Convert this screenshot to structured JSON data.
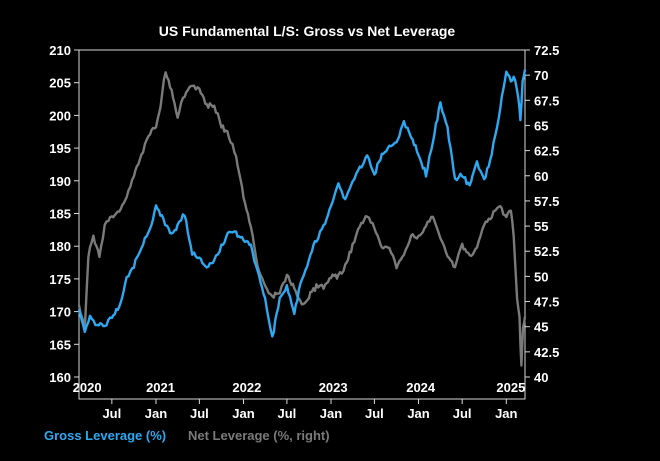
{
  "chart_data": {
    "type": "line",
    "title": "US Fundamental L/S: Gross vs Net Leverage",
    "x_range": [
      "2020-02-15",
      "2025-03-20"
    ],
    "year_labels": [
      {
        "label": "2020",
        "date": "2020-03-20"
      },
      {
        "label": "2021",
        "date": "2021-01-20"
      },
      {
        "label": "2022",
        "date": "2022-01-15"
      },
      {
        "label": "2023",
        "date": "2023-01-10"
      },
      {
        "label": "2024",
        "date": "2024-01-10"
      },
      {
        "label": "2025",
        "date": "2025-01-20"
      }
    ],
    "month_ticks": [
      {
        "label": "Jul",
        "date": "2020-07-01"
      },
      {
        "label": "Jan",
        "date": "2021-01-01"
      },
      {
        "label": "Jul",
        "date": "2021-07-01"
      },
      {
        "label": "Jan",
        "date": "2022-01-01"
      },
      {
        "label": "Jul",
        "date": "2022-07-01"
      },
      {
        "label": "Jan",
        "date": "2023-01-01"
      },
      {
        "label": "Jul",
        "date": "2023-07-01"
      },
      {
        "label": "Jan",
        "date": "2024-01-01"
      },
      {
        "label": "Jul",
        "date": "2024-07-01"
      },
      {
        "label": "Jan",
        "date": "2025-01-01"
      }
    ],
    "y_left": {
      "min": 160,
      "max": 210,
      "ticks": [
        "160",
        "165",
        "170",
        "175",
        "180",
        "185",
        "190",
        "195",
        "200",
        "205",
        "210"
      ]
    },
    "y_right": {
      "min": 40,
      "max": 72.5,
      "ticks": [
        "40",
        "42.5",
        "45",
        "47.5",
        "50",
        "52.5",
        "55",
        "57.5",
        "60",
        "62.5",
        "65",
        "67.5",
        "70",
        "72.5"
      ]
    },
    "series": [
      {
        "name": "Net Leverage (%, right)",
        "axis": "right",
        "color": "#7a7a7a",
        "points": [
          [
            "2020-02-15",
            47
          ],
          [
            "2020-03-10",
            45
          ],
          [
            "2020-03-25",
            52
          ],
          [
            "2020-04-15",
            54
          ],
          [
            "2020-05-10",
            52
          ],
          [
            "2020-06-01",
            55
          ],
          [
            "2020-07-01",
            56
          ],
          [
            "2020-08-01",
            56.5
          ],
          [
            "2020-09-01",
            58
          ],
          [
            "2020-10-01",
            60
          ],
          [
            "2020-11-01",
            62
          ],
          [
            "2020-12-01",
            64
          ],
          [
            "2021-01-01",
            65
          ],
          [
            "2021-01-20",
            67
          ],
          [
            "2021-02-10",
            70.5
          ],
          [
            "2021-03-01",
            69
          ],
          [
            "2021-04-01",
            66
          ],
          [
            "2021-05-01",
            68
          ],
          [
            "2021-06-01",
            69
          ],
          [
            "2021-07-01",
            68.5
          ],
          [
            "2021-08-01",
            67
          ],
          [
            "2021-09-01",
            67
          ],
          [
            "2021-10-01",
            65
          ],
          [
            "2021-11-01",
            64
          ],
          [
            "2021-12-01",
            62
          ],
          [
            "2022-01-01",
            58
          ],
          [
            "2022-02-01",
            55
          ],
          [
            "2022-03-01",
            51
          ],
          [
            "2022-04-01",
            49
          ],
          [
            "2022-05-01",
            48
          ],
          [
            "2022-06-01",
            48.5
          ],
          [
            "2022-07-01",
            50
          ],
          [
            "2022-08-01",
            49
          ],
          [
            "2022-09-01",
            47
          ],
          [
            "2022-10-01",
            48
          ],
          [
            "2022-11-01",
            49
          ],
          [
            "2022-12-01",
            49
          ],
          [
            "2023-01-01",
            50
          ],
          [
            "2023-02-01",
            50
          ],
          [
            "2023-03-01",
            51
          ],
          [
            "2023-04-01",
            53
          ],
          [
            "2023-05-01",
            55
          ],
          [
            "2023-06-01",
            56
          ],
          [
            "2023-07-01",
            55
          ],
          [
            "2023-08-01",
            53
          ],
          [
            "2023-09-01",
            53
          ],
          [
            "2023-10-01",
            51
          ],
          [
            "2023-11-01",
            52
          ],
          [
            "2023-12-01",
            54
          ],
          [
            "2024-01-01",
            54
          ],
          [
            "2024-02-01",
            55
          ],
          [
            "2024-03-01",
            56
          ],
          [
            "2024-04-01",
            54
          ],
          [
            "2024-05-01",
            52
          ],
          [
            "2024-06-01",
            51
          ],
          [
            "2024-07-01",
            53
          ],
          [
            "2024-08-01",
            52
          ],
          [
            "2024-09-01",
            53
          ],
          [
            "2024-10-01",
            55
          ],
          [
            "2024-11-01",
            56
          ],
          [
            "2024-12-01",
            57
          ],
          [
            "2025-01-01",
            56
          ],
          [
            "2025-01-20",
            56.5
          ],
          [
            "2025-02-01",
            54
          ],
          [
            "2025-02-15",
            48
          ],
          [
            "2025-02-25",
            46
          ],
          [
            "2025-03-05",
            41
          ],
          [
            "2025-03-12",
            45
          ],
          [
            "2025-03-20",
            46
          ]
        ]
      },
      {
        "name": "Gross Leverage (%)",
        "axis": "left",
        "color": "#2ea8f0",
        "points": [
          [
            "2020-02-15",
            170
          ],
          [
            "2020-03-10",
            167
          ],
          [
            "2020-04-01",
            169
          ],
          [
            "2020-05-01",
            168
          ],
          [
            "2020-06-01",
            168
          ],
          [
            "2020-07-01",
            169
          ],
          [
            "2020-08-01",
            171
          ],
          [
            "2020-09-01",
            175
          ],
          [
            "2020-10-01",
            177
          ],
          [
            "2020-11-01",
            180
          ],
          [
            "2020-12-01",
            182
          ],
          [
            "2021-01-01",
            186
          ],
          [
            "2021-02-01",
            184
          ],
          [
            "2021-03-01",
            182
          ],
          [
            "2021-04-01",
            183
          ],
          [
            "2021-05-01",
            185
          ],
          [
            "2021-06-01",
            179
          ],
          [
            "2021-07-01",
            178
          ],
          [
            "2021-08-01",
            177
          ],
          [
            "2021-09-01",
            178
          ],
          [
            "2021-10-01",
            180
          ],
          [
            "2021-11-01",
            182
          ],
          [
            "2021-12-01",
            182
          ],
          [
            "2022-01-01",
            181
          ],
          [
            "2022-02-01",
            180
          ],
          [
            "2022-03-01",
            176
          ],
          [
            "2022-04-01",
            172
          ],
          [
            "2022-05-01",
            166
          ],
          [
            "2022-06-01",
            172
          ],
          [
            "2022-07-01",
            174
          ],
          [
            "2022-08-01",
            170
          ],
          [
            "2022-09-01",
            175
          ],
          [
            "2022-10-01",
            178
          ],
          [
            "2022-11-01",
            181
          ],
          [
            "2022-12-01",
            183
          ],
          [
            "2023-01-01",
            186
          ],
          [
            "2023-02-01",
            190
          ],
          [
            "2023-03-01",
            187
          ],
          [
            "2023-04-01",
            190
          ],
          [
            "2023-05-01",
            192
          ],
          [
            "2023-06-01",
            194
          ],
          [
            "2023-07-01",
            191
          ],
          [
            "2023-08-01",
            194
          ],
          [
            "2023-09-01",
            195
          ],
          [
            "2023-10-01",
            196
          ],
          [
            "2023-11-01",
            199
          ],
          [
            "2023-12-01",
            197
          ],
          [
            "2024-01-01",
            194
          ],
          [
            "2024-02-01",
            191
          ],
          [
            "2024-03-01",
            196
          ],
          [
            "2024-04-01",
            202
          ],
          [
            "2024-05-01",
            198
          ],
          [
            "2024-06-01",
            190
          ],
          [
            "2024-07-01",
            191
          ],
          [
            "2024-08-01",
            189
          ],
          [
            "2024-09-01",
            193
          ],
          [
            "2024-10-01",
            190
          ],
          [
            "2024-11-01",
            194
          ],
          [
            "2024-12-01",
            200
          ],
          [
            "2025-01-01",
            207
          ],
          [
            "2025-01-20",
            205
          ],
          [
            "2025-02-01",
            206
          ],
          [
            "2025-02-20",
            203
          ],
          [
            "2025-03-01",
            199
          ],
          [
            "2025-03-10",
            205
          ],
          [
            "2025-03-20",
            207
          ]
        ]
      }
    ],
    "legend": [
      {
        "label": "Gross Leverage (%)",
        "color": "#2ea8f0"
      },
      {
        "label": "Net Leverage (%, right)",
        "color": "#7a7a7a"
      }
    ],
    "legend_position": "bottom-left",
    "grid": false
  }
}
